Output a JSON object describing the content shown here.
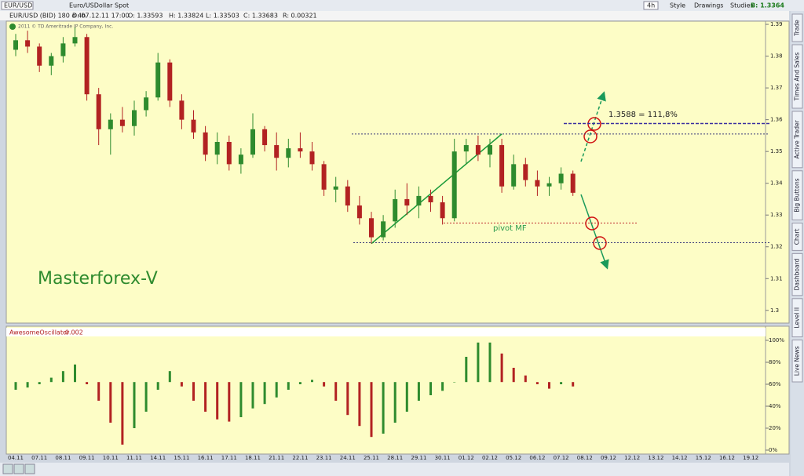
{
  "toolbar": {
    "symbol": "EUR/USD",
    "description": "Euro/USDollar Spot",
    "timeframe": "4h",
    "style": "Style",
    "drawings": "Drawings",
    "studies": "Studies",
    "bid": "B: 1.3364"
  },
  "info_bar": {
    "series": "EUR/USD (BID) 180 d 4h",
    "date": "D: 07.12.11 17:00",
    "open": "O: 1.33593",
    "high": "H: 1.33824",
    "low": "L: 1.33503",
    "close": "C: 1.33683",
    "range": "R: 0.00321"
  },
  "copyright": "2011 © TD Ameritrade IP Company, Inc.",
  "side_tabs": [
    "Trade",
    "Times And Sales",
    "Active Trader",
    "Big Buttons",
    "Chart",
    "Dashboard",
    "Level II",
    "Live News"
  ],
  "chart_data": {
    "type": "candlestick",
    "watermark": "Masterforex-V",
    "annotations": [
      "1.3588 = 111,8%",
      "pivot MF"
    ],
    "up_color": "#2e8b2e",
    "down_color": "#b22222",
    "levels": [
      {
        "value": 1.3588,
        "color": "#3a2fa0"
      },
      {
        "value": 1.3555,
        "color": "#3a3a7a"
      },
      {
        "value": 1.3275,
        "color": "#c03030"
      },
      {
        "value": 1.3213,
        "color": "#3a3a7a"
      }
    ],
    "categories": [
      "04.11",
      null,
      "07.11",
      null,
      "08.11",
      null,
      "09.11",
      null,
      "10.11",
      null,
      "11.11",
      null,
      "14.11",
      null,
      "15.11",
      null,
      "16.11",
      null,
      "17.11",
      null,
      "18.11",
      null,
      "21.11",
      null,
      "22.11",
      null,
      "23.11",
      null,
      "24.11",
      null,
      "25.11",
      null,
      "28.11",
      null,
      "29.11",
      null,
      "30.11",
      null,
      "01.12",
      null,
      "02.12",
      null,
      "05.12",
      null,
      "06.12",
      null,
      "07.12",
      null,
      "08.12",
      null,
      "09.12",
      null,
      "12.12",
      null,
      "13.12",
      null,
      "14.12",
      null,
      "15.12",
      null,
      "16.12",
      null,
      "19.12",
      null
    ],
    "open": [
      1.382,
      1.385,
      1.383,
      1.377,
      1.38,
      1.384,
      1.386,
      1.368,
      1.357,
      1.36,
      1.358,
      1.363,
      1.367,
      1.378,
      1.366,
      1.36,
      1.356,
      1.349,
      1.353,
      1.346,
      1.349,
      1.357,
      1.352,
      1.348,
      1.351,
      1.35,
      1.346,
      1.338,
      1.339,
      1.333,
      1.329,
      1.323,
      1.328,
      1.335,
      1.333,
      1.336,
      1.334,
      1.329,
      1.35,
      1.352,
      1.349,
      1.352,
      1.339,
      1.346,
      1.341,
      1.339,
      1.34,
      1.343,
      null,
      null,
      null,
      null,
      null,
      null,
      null,
      null,
      null,
      null,
      null,
      null,
      null,
      null,
      null,
      null
    ],
    "high": [
      1.387,
      1.388,
      1.384,
      1.381,
      1.386,
      1.389,
      1.387,
      1.37,
      1.362,
      1.364,
      1.366,
      1.369,
      1.381,
      1.379,
      1.368,
      1.363,
      1.358,
      1.356,
      1.355,
      1.351,
      1.362,
      1.358,
      1.356,
      1.354,
      1.356,
      1.353,
      1.347,
      1.342,
      1.341,
      1.336,
      1.331,
      1.33,
      1.338,
      1.34,
      1.339,
      1.338,
      1.336,
      1.354,
      1.354,
      1.355,
      1.354,
      1.354,
      1.349,
      1.348,
      1.344,
      1.342,
      1.345,
      1.344,
      null,
      null,
      null,
      null,
      null,
      null,
      null,
      null,
      null,
      null,
      null,
      null,
      null,
      null,
      null,
      null
    ],
    "low": [
      1.38,
      1.381,
      1.375,
      1.374,
      1.378,
      1.383,
      1.366,
      1.352,
      1.349,
      1.356,
      1.355,
      1.361,
      1.366,
      1.364,
      1.357,
      1.354,
      1.347,
      1.346,
      1.344,
      1.343,
      1.348,
      1.35,
      1.344,
      1.345,
      1.348,
      1.344,
      1.336,
      1.334,
      1.331,
      1.327,
      1.321,
      1.322,
      1.326,
      1.33,
      1.329,
      1.331,
      1.327,
      1.328,
      1.346,
      1.347,
      1.345,
      1.337,
      1.338,
      1.339,
      1.336,
      1.336,
      1.338,
      1.336,
      null,
      null,
      null,
      null,
      null,
      null,
      null,
      null,
      null,
      null,
      null,
      null,
      null,
      null,
      null,
      null
    ],
    "close": [
      1.385,
      1.383,
      1.377,
      1.38,
      1.384,
      1.386,
      1.368,
      1.357,
      1.36,
      1.358,
      1.363,
      1.367,
      1.378,
      1.366,
      1.36,
      1.356,
      1.349,
      1.353,
      1.346,
      1.349,
      1.357,
      1.352,
      1.348,
      1.351,
      1.35,
      1.346,
      1.338,
      1.339,
      1.333,
      1.329,
      1.323,
      1.328,
      1.335,
      1.333,
      1.336,
      1.334,
      1.329,
      1.35,
      1.352,
      1.349,
      1.352,
      1.339,
      1.346,
      1.341,
      1.339,
      1.34,
      1.343,
      1.337,
      null,
      null,
      null,
      null,
      null,
      null,
      null,
      null,
      null,
      null,
      null,
      null,
      null,
      null,
      null,
      null
    ],
    "ylim": [
      1.296,
      1.391
    ],
    "yticks": [
      1.39,
      1.38,
      1.37,
      1.36,
      1.35,
      1.34,
      1.33,
      1.32,
      1.31,
      1.3
    ],
    "indicator": {
      "name": "AwesomeOscillator",
      "value_label": "-0.002",
      "baseline": 62,
      "ylim": [
        0,
        100
      ],
      "yticks": [
        {
          "value": 100,
          "label": "100%"
        },
        {
          "value": 80,
          "label": "80%"
        },
        {
          "value": 60,
          "label": "60%"
        },
        {
          "value": 40,
          "label": "40%"
        },
        {
          "value": 20,
          "label": "20%"
        },
        {
          "value": 0,
          "label": "0%"
        }
      ],
      "values": [
        55,
        57,
        60,
        66,
        72,
        78,
        60,
        45,
        25,
        5,
        20,
        35,
        55,
        72,
        58,
        45,
        35,
        28,
        26,
        30,
        38,
        42,
        48,
        55,
        60,
        64,
        58,
        45,
        32,
        22,
        12,
        15,
        25,
        35,
        45,
        50,
        54,
        62,
        85,
        98,
        98,
        88,
        75,
        68,
        60,
        56,
        60,
        58,
        null,
        null,
        null,
        null,
        null,
        null,
        null,
        null,
        null,
        null,
        null,
        null,
        null,
        null,
        null,
        null
      ]
    }
  }
}
